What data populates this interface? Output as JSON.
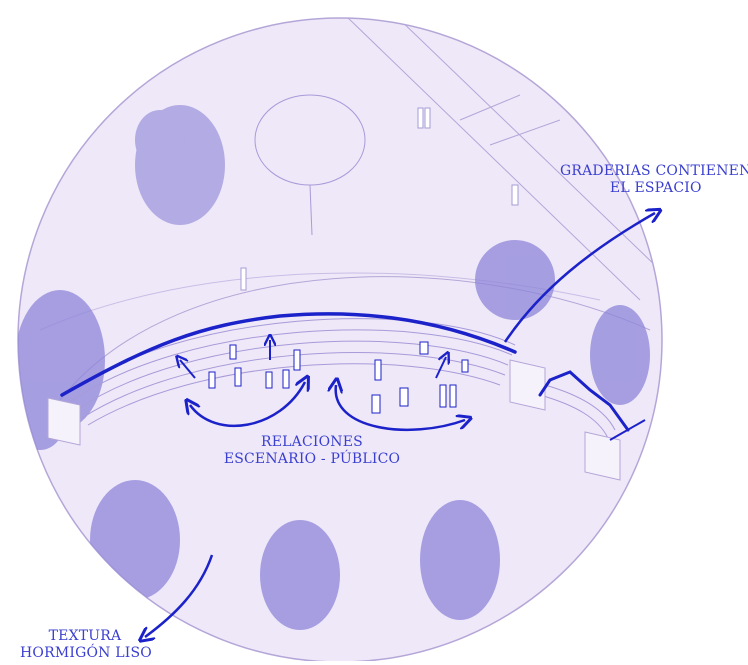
{
  "colors": {
    "ink": "#1b22c9",
    "label_text": "#3a3fd0",
    "tint": "#efe8f8",
    "rim": "#b4a6d8",
    "sketch": "#a79bd9",
    "tree": "#8d86d9"
  },
  "labels": {
    "graderias": {
      "line1": "GRADERIAS CONTIENEN",
      "line2": "EL ESPACIO"
    },
    "relaciones": {
      "line1": "RELACIONES",
      "line2": "ESCENARIO - PÚBLICO"
    },
    "textura": {
      "line1": "TEXTURA",
      "line2": "HORMIGÓN LISO"
    }
  }
}
